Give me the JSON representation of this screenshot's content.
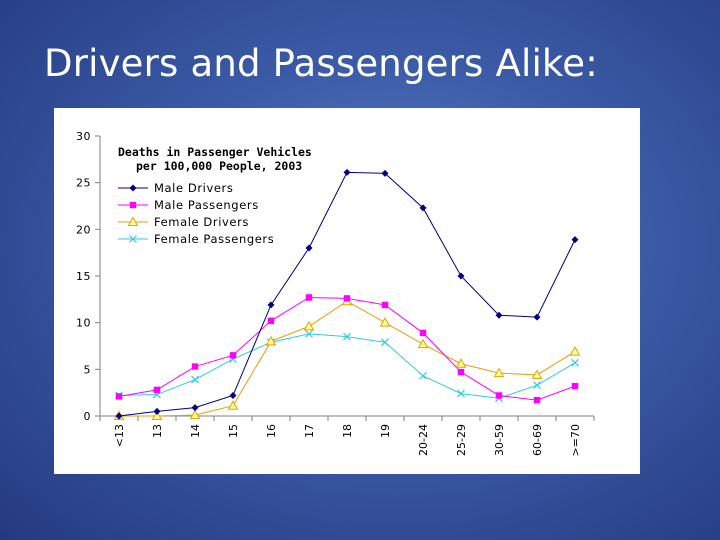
{
  "slide": {
    "title": "Drivers and Passengers Alike:"
  },
  "chart_data": {
    "type": "line",
    "title": "Deaths in Passenger Vehicles",
    "subtitle": "per 100,000 People, 2003",
    "xlabel": "",
    "ylabel": "",
    "categories": [
      "<13",
      "13",
      "14",
      "15",
      "16",
      "17",
      "18",
      "19",
      "20-24",
      "25-29",
      "30-59",
      "60-69",
      ">=70"
    ],
    "ylim": [
      0,
      30
    ],
    "yticks": [
      0,
      5,
      10,
      15,
      20,
      25,
      30
    ],
    "grid": false,
    "legend_position": "top-left",
    "series": [
      {
        "name": "Male Drivers",
        "color": "#000080",
        "marker": "diamond",
        "values": [
          0,
          0.5,
          0.9,
          2.2,
          11.9,
          18.0,
          26.1,
          26.0,
          22.3,
          15.0,
          10.8,
          10.6,
          18.9
        ]
      },
      {
        "name": "Male Passengers",
        "color": "#ff00ff",
        "marker": "square",
        "values": [
          2.1,
          2.8,
          5.3,
          6.5,
          10.2,
          12.7,
          12.6,
          11.9,
          8.9,
          4.7,
          2.2,
          1.7,
          3.2
        ]
      },
      {
        "name": "Female Drivers",
        "color": "#e6a000",
        "marker": "triangle",
        "values": [
          0,
          0,
          0.1,
          1.1,
          8.0,
          9.6,
          12.3,
          10.0,
          7.7,
          5.6,
          4.6,
          4.4,
          6.9
        ]
      },
      {
        "name": "Female Passengers",
        "color": "#33ccdd",
        "marker": "x",
        "values": [
          2.2,
          2.3,
          3.9,
          6.1,
          7.9,
          8.8,
          8.5,
          7.9,
          4.3,
          2.4,
          1.9,
          3.3,
          5.7
        ]
      }
    ]
  }
}
